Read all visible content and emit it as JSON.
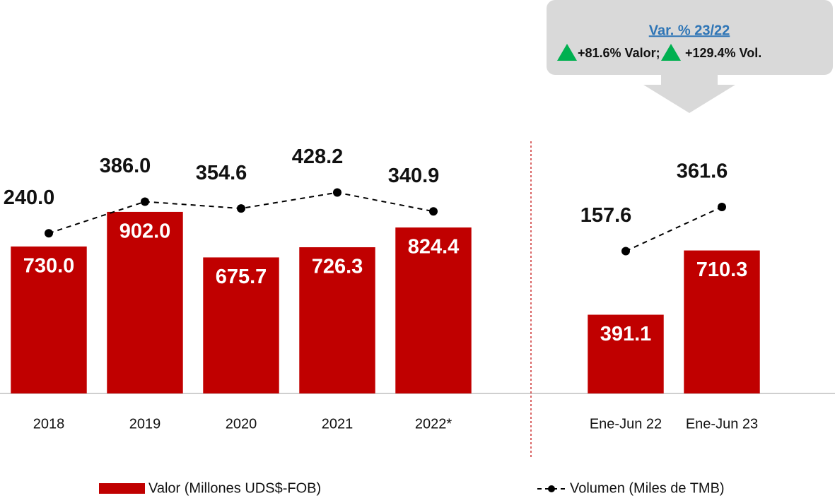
{
  "chart_data": {
    "type": "bar_line",
    "categories": [
      "2018",
      "2019",
      "2020",
      "2021",
      "2022*",
      null,
      "Ene-Jun 22",
      "Ene-Jun 23"
    ],
    "ylim": [
      0,
      1000
    ],
    "y2lim": [
      -500,
      430
    ],
    "series": [
      {
        "name": "Valor (Millones UDS$-FOB)",
        "type": "bar",
        "color": "#c00000",
        "values": [
          730.0,
          902.0,
          675.7,
          726.3,
          824.4,
          null,
          391.1,
          710.3
        ],
        "value_labels": [
          "730.0",
          "902.0",
          "675.7",
          "726.3",
          "824.4",
          null,
          "391.1",
          "710.3"
        ]
      },
      {
        "name": "Volumen (Miles de TMB)",
        "type": "line",
        "axis": "y2",
        "color": "#000000",
        "values": [
          240.0,
          386.0,
          354.6,
          428.2,
          340.9,
          null,
          157.6,
          361.6
        ],
        "value_labels": [
          "240.0",
          "386.0",
          "354.6",
          "428.2",
          "340.9",
          null,
          "157.6",
          "361.6"
        ]
      }
    ],
    "annotation": {
      "title": "Var. % 23/22",
      "items": [
        "+81.6% Valor;",
        "+129.4% Vol."
      ]
    }
  }
}
